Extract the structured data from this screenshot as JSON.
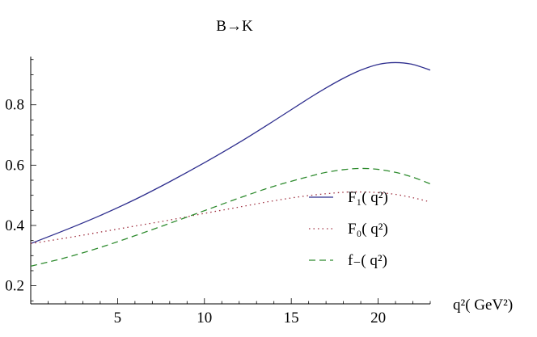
{
  "chart_data": {
    "type": "line",
    "title": "B→K",
    "xlabel": "q²( GeV²)",
    "xlim": [
      0,
      23
    ],
    "ylim": [
      0.14,
      0.96
    ],
    "xticks": [
      5,
      10,
      15,
      20
    ],
    "yticks": [
      0.2,
      0.4,
      0.6,
      0.8
    ],
    "legend_position": "lower-right",
    "grid": false,
    "series": [
      {
        "name": "F₁( q²)",
        "style": "solid",
        "color": "#2e2e8e",
        "x": [
          0,
          2,
          4,
          6,
          8,
          10,
          12,
          14,
          16,
          17,
          18,
          19,
          20,
          21,
          22,
          23
        ],
        "y": [
          0.34,
          0.385,
          0.433,
          0.486,
          0.545,
          0.608,
          0.675,
          0.747,
          0.821,
          0.856,
          0.888,
          0.915,
          0.934,
          0.94,
          0.934,
          0.915
        ]
      },
      {
        "name": "F₀( q²)",
        "style": "dotted",
        "color": "#a03040",
        "x": [
          0,
          2,
          4,
          6,
          8,
          10,
          12,
          14,
          16,
          18,
          19,
          20,
          21,
          22,
          23
        ],
        "y": [
          0.34,
          0.358,
          0.378,
          0.398,
          0.418,
          0.44,
          0.461,
          0.482,
          0.499,
          0.51,
          0.511,
          0.509,
          0.503,
          0.492,
          0.478
        ]
      },
      {
        "name": "f₋( q²)",
        "style": "dashed",
        "color": "#2e8b2e",
        "x": [
          0,
          2,
          4,
          6,
          8,
          10,
          12,
          14,
          16,
          17,
          18,
          19,
          20,
          21,
          22,
          23
        ],
        "y": [
          0.265,
          0.293,
          0.327,
          0.366,
          0.407,
          0.449,
          0.491,
          0.53,
          0.562,
          0.576,
          0.585,
          0.589,
          0.586,
          0.576,
          0.56,
          0.538
        ]
      }
    ]
  }
}
